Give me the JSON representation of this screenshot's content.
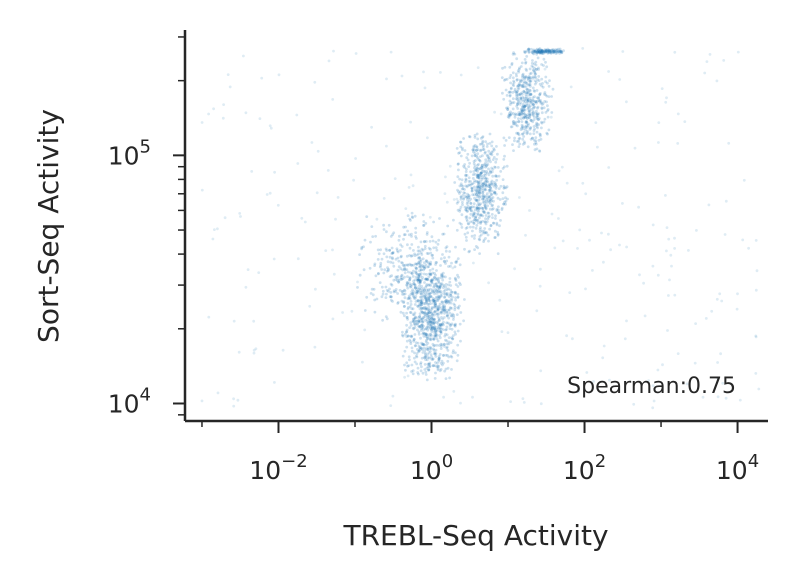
{
  "chart_data": {
    "type": "scatter",
    "xlabel": "TREBL-Seq Activity",
    "ylabel": "Sort-Seq Activity",
    "xscale": "log",
    "yscale": "log",
    "xlim": [
      0.0006,
      25000
    ],
    "ylim": [
      8500,
      320000
    ],
    "x_ticks": [
      {
        "value": 0.01,
        "base": "10",
        "exp": "−2"
      },
      {
        "value": 1,
        "base": "10",
        "exp": "0"
      },
      {
        "value": 100,
        "base": "10",
        "exp": "2"
      },
      {
        "value": 10000,
        "base": "10",
        "exp": "4"
      }
    ],
    "y_ticks": [
      {
        "value": 10000,
        "base": "10",
        "exp": "4"
      },
      {
        "value": 100000,
        "base": "10",
        "exp": "5"
      }
    ],
    "annotation": "Spearman:0.75",
    "series": [
      {
        "color": "#1f77b4",
        "density_profile": [
          {
            "x_range": [
              0.4,
              2.5
            ],
            "y_range": [
              12000,
              40000
            ],
            "weight": 0.3
          },
          {
            "x_range": [
              0.1,
              3
            ],
            "y_range": [
              20000,
              60000
            ],
            "weight": 0.15
          },
          {
            "x_range": [
              2,
              10
            ],
            "y_range": [
              40000,
              130000
            ],
            "weight": 0.22
          },
          {
            "x_range": [
              8,
              40
            ],
            "y_range": [
              100000,
              270000
            ],
            "weight": 0.18
          },
          {
            "x_range": [
              15,
              60
            ],
            "y_range": [
              255000,
              270000
            ],
            "weight": 0.05
          },
          {
            "x_range": [
              0.001,
              20000
            ],
            "y_range": [
              9500,
              270000
            ],
            "weight": 0.1
          }
        ]
      }
    ],
    "grid": false,
    "legend": "none"
  }
}
